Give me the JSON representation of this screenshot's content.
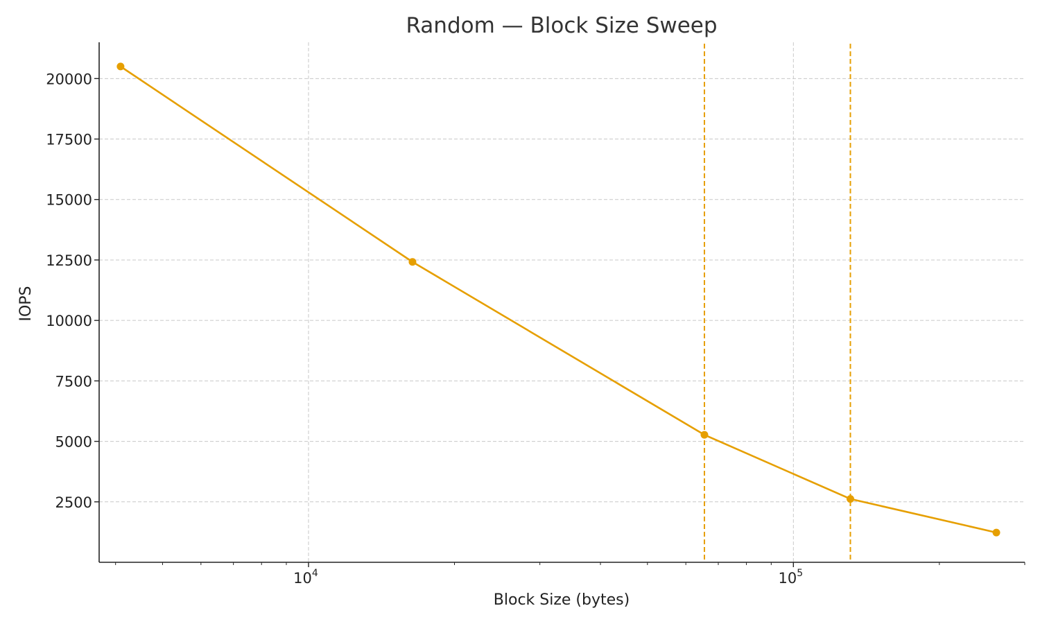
{
  "chart_data": {
    "type": "line",
    "title": "Random — Block Size Sweep",
    "xlabel": "Block Size (bytes)",
    "ylabel": "IOPS",
    "x_scale": "log",
    "xlim": [
      3700,
      300000
    ],
    "ylim": [
      0,
      21500
    ],
    "grid": true,
    "x_ticks": [
      {
        "value": 10000,
        "base": "10",
        "exp": "4"
      },
      {
        "value": 100000,
        "base": "10",
        "exp": "5"
      }
    ],
    "y_ticks": [
      2500,
      5000,
      7500,
      10000,
      12500,
      15000,
      17500,
      20000
    ],
    "series": [
      {
        "color": "#E69F00",
        "x": [
          4096,
          16384,
          65536,
          131072,
          262144
        ],
        "y": [
          20500,
          12420,
          5270,
          2620,
          1230
        ]
      }
    ],
    "vertical_lines": [
      {
        "x": 65536,
        "color": "#E69F00"
      },
      {
        "x": 131072,
        "color": "#E69F00"
      }
    ]
  }
}
